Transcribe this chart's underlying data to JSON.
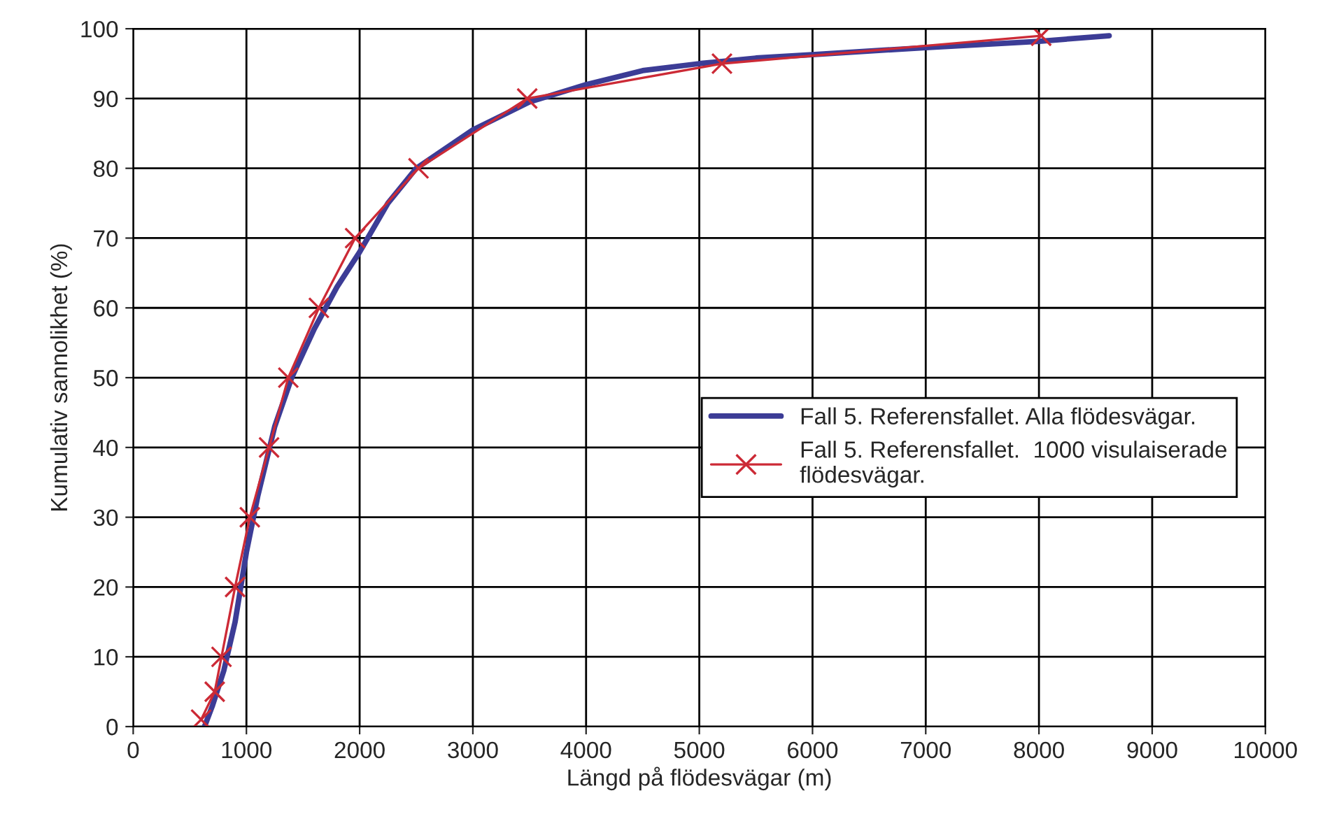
{
  "chart_data": {
    "type": "line",
    "xlabel": "Längd på flödesvägar (m)",
    "ylabel": "Kumulativ sannolikhet (%)",
    "xlim": [
      0,
      10000
    ],
    "xticks": [
      0,
      1000,
      2000,
      3000,
      4000,
      5000,
      6000,
      7000,
      8000,
      9000,
      10000
    ],
    "ylim": [
      0,
      100
    ],
    "yticks": [
      0,
      10,
      20,
      30,
      40,
      50,
      60,
      70,
      80,
      90,
      100
    ],
    "grid": true,
    "legend": "right",
    "series": [
      {
        "name": "Fall 5. Referensfallet. Alla flödesvägar.",
        "color": "#3c3c96",
        "marker": "none",
        "x": [
          630,
          700,
          800,
          900,
          1000,
          1100,
          1250,
          1400,
          1600,
          1800,
          2000,
          2250,
          2500,
          3000,
          3500,
          4000,
          4500,
          5000,
          5500,
          6000,
          7000,
          8000,
          8620
        ],
        "values": [
          0,
          3,
          8,
          15,
          25,
          33,
          43,
          50,
          57,
          63,
          68,
          75,
          80,
          85.5,
          89.5,
          92,
          94,
          95,
          95.8,
          96.3,
          97.3,
          98.2,
          99
        ]
      },
      {
        "name": "Fall 5. Referensfallet.  1000 visulaiserade\nflödesvägar.",
        "color": "#cc2a36",
        "marker": "cross",
        "x": [
          600,
          720,
          780,
          900,
          1030,
          1200,
          1370,
          1640,
          1960,
          2520,
          3480,
          5200,
          8020
        ],
        "values": [
          1,
          5,
          10,
          20,
          30,
          40,
          50,
          60,
          70,
          80,
          90,
          95,
          99
        ]
      }
    ]
  }
}
